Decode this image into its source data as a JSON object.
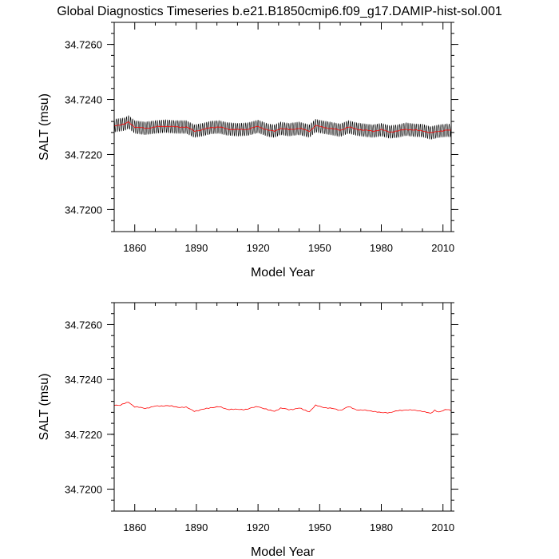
{
  "title": "Global Diagnostics Timeseries b.e21.B1850cmip6.f09_g17.DAMIP-hist-sol.001",
  "colors": {
    "monthly": "#000000",
    "annual": "#ff0000",
    "frame": "#000000"
  },
  "chart_data": [
    {
      "type": "line",
      "xlabel": "Model Year",
      "ylabel": "SALT (msu)",
      "xlim": [
        1850,
        2014
      ],
      "ylim": [
        34.7192,
        34.7268
      ],
      "xticks": [
        1860,
        1890,
        1920,
        1950,
        1980,
        2010
      ],
      "xtick_labels": [
        "1860",
        "1890",
        "1920",
        "1950",
        "1980",
        "2010"
      ],
      "yticks": [
        34.72,
        34.722,
        34.724,
        34.726
      ],
      "ytick_labels": [
        "34.7200",
        "34.7220",
        "34.7240",
        "34.7260"
      ],
      "grid": false,
      "series": [
        {
          "color": "#000000",
          "style": "monthly oscillation",
          "amplitude": 0.00024,
          "x": [
            1850,
            1855,
            1857,
            1860,
            1865,
            1870,
            1875,
            1880,
            1885,
            1889,
            1893,
            1897,
            1901,
            1905,
            1910,
            1915,
            1920,
            1925,
            1928,
            1931,
            1935,
            1940,
            1945,
            1948,
            1951,
            1955,
            1960,
            1964,
            1968,
            1972,
            1976,
            1980,
            1984,
            1988,
            1992,
            1996,
            2000,
            2004,
            2008,
            2012,
            2014
          ],
          "values": [
            34.72305,
            34.7231,
            34.72318,
            34.723,
            34.72295,
            34.723,
            34.72303,
            34.723,
            34.723,
            34.72285,
            34.7229,
            34.72298,
            34.723,
            34.72293,
            34.7229,
            34.72292,
            34.72302,
            34.72288,
            34.72285,
            34.72295,
            34.7229,
            34.72295,
            34.72285,
            34.72305,
            34.723,
            34.72295,
            34.72288,
            34.723,
            34.72292,
            34.72288,
            34.72285,
            34.7229,
            34.72282,
            34.72285,
            34.72292,
            34.72288,
            34.72287,
            34.72278,
            34.72285,
            34.72288,
            34.72287
          ]
        },
        {
          "color": "#ff0000",
          "style": "annual mean",
          "x": [
            1850,
            1855,
            1857,
            1860,
            1865,
            1870,
            1875,
            1880,
            1885,
            1889,
            1893,
            1897,
            1901,
            1905,
            1910,
            1915,
            1920,
            1925,
            1928,
            1931,
            1935,
            1940,
            1945,
            1948,
            1951,
            1955,
            1960,
            1964,
            1968,
            1972,
            1976,
            1980,
            1984,
            1988,
            1992,
            1996,
            2000,
            2004,
            2008,
            2012,
            2014
          ],
          "values": [
            34.72305,
            34.7231,
            34.72318,
            34.723,
            34.72295,
            34.723,
            34.72303,
            34.723,
            34.723,
            34.72285,
            34.7229,
            34.72298,
            34.723,
            34.72293,
            34.7229,
            34.72292,
            34.72302,
            34.72288,
            34.72285,
            34.72295,
            34.7229,
            34.72295,
            34.72285,
            34.72305,
            34.723,
            34.72295,
            34.72288,
            34.723,
            34.72292,
            34.72288,
            34.72285,
            34.7229,
            34.72282,
            34.72285,
            34.72292,
            34.72288,
            34.72287,
            34.72278,
            34.72285,
            34.72288,
            34.72287
          ]
        }
      ]
    },
    {
      "type": "line",
      "xlabel": "Model Year",
      "ylabel": "SALT (msu)",
      "xlim": [
        1850,
        2014
      ],
      "ylim": [
        34.7192,
        34.7268
      ],
      "xticks": [
        1860,
        1890,
        1920,
        1950,
        1980,
        2010
      ],
      "xtick_labels": [
        "1860",
        "1890",
        "1920",
        "1950",
        "1980",
        "2010"
      ],
      "yticks": [
        34.72,
        34.722,
        34.724,
        34.726
      ],
      "ytick_labels": [
        "34.7200",
        "34.7220",
        "34.7240",
        "34.7260"
      ],
      "grid": false,
      "series": [
        {
          "color": "#ff0000",
          "style": "annual mean",
          "x": [
            1850,
            1853,
            1855,
            1857,
            1860,
            1865,
            1870,
            1875,
            1880,
            1885,
            1889,
            1893,
            1897,
            1901,
            1905,
            1910,
            1915,
            1920,
            1925,
            1928,
            1931,
            1935,
            1940,
            1945,
            1948,
            1951,
            1955,
            1960,
            1964,
            1968,
            1972,
            1976,
            1980,
            1984,
            1988,
            1992,
            1996,
            2000,
            2004,
            2006,
            2008,
            2012,
            2014
          ],
          "values": [
            34.72308,
            34.72305,
            34.72312,
            34.72318,
            34.723,
            34.72295,
            34.72302,
            34.72305,
            34.723,
            34.72298,
            34.72285,
            34.7229,
            34.72298,
            34.723,
            34.72292,
            34.7229,
            34.72292,
            34.72302,
            34.72288,
            34.72285,
            34.72295,
            34.7229,
            34.72295,
            34.72283,
            34.72305,
            34.723,
            34.72295,
            34.72288,
            34.723,
            34.7229,
            34.72287,
            34.72285,
            34.72278,
            34.7228,
            34.72285,
            34.7229,
            34.72287,
            34.72285,
            34.72275,
            34.72288,
            34.72282,
            34.7229,
            34.72287
          ]
        }
      ]
    }
  ]
}
